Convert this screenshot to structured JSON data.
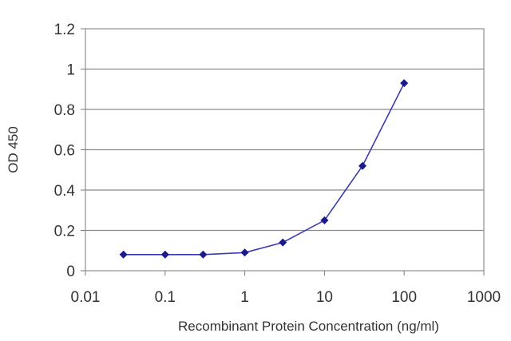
{
  "chart_data": {
    "type": "line",
    "title": "",
    "xlabel": "Recombinant Protein Concentration (ng/ml)",
    "ylabel": "OD 450",
    "x_scale": "log",
    "xlim": [
      0.01,
      1000
    ],
    "ylim": [
      0,
      1.2
    ],
    "x_ticks": [
      0.01,
      0.1,
      1,
      10,
      100,
      1000
    ],
    "x_tick_labels": [
      "0.01",
      "0.1",
      "1",
      "10",
      "100",
      "1000"
    ],
    "y_ticks": [
      0,
      0.2,
      0.4,
      0.6,
      0.8,
      1,
      1.2
    ],
    "y_tick_labels": [
      "0",
      "0.2",
      "0.4",
      "0.6",
      "0.8",
      "1",
      "1.2"
    ],
    "grid": "horizontal",
    "legend": "none",
    "series": [
      {
        "x": [
          0.03,
          0.1,
          0.3,
          1,
          3,
          10,
          30,
          100
        ],
        "y": [
          0.08,
          0.08,
          0.08,
          0.09,
          0.14,
          0.25,
          0.52,
          0.93
        ]
      }
    ],
    "colors": {
      "line": "#3b3bb0",
      "marker": "#1a1a8c",
      "grid": "#8a8a8a",
      "axis": "#7a7a7a"
    }
  }
}
